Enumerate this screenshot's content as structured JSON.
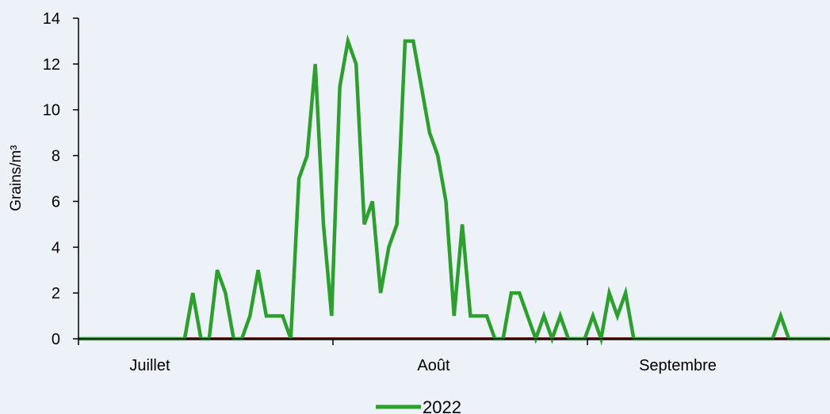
{
  "chart_data": {
    "type": "line",
    "title": "",
    "xlabel": "",
    "ylabel": "Grains/m³",
    "ylim": [
      0,
      14
    ],
    "yticks": [
      0,
      2,
      4,
      6,
      8,
      10,
      12,
      14
    ],
    "grid": false,
    "legend_position": "bottom",
    "month_labels": [
      "Juillet",
      "Août",
      "Septembre"
    ],
    "series": [
      {
        "name": "2022",
        "color": "#2ca02c",
        "values": [
          0,
          0,
          0,
          0,
          0,
          0,
          0,
          0,
          0,
          0,
          0,
          0,
          0,
          0,
          2,
          0,
          0,
          3,
          2,
          0,
          0,
          1,
          3,
          1,
          1,
          1,
          0,
          7,
          8,
          12,
          5,
          1,
          11,
          13,
          12,
          5,
          6,
          2,
          4,
          5,
          13,
          13,
          11,
          9,
          8,
          6,
          1,
          5,
          1,
          1,
          1,
          0,
          0,
          2,
          2,
          1,
          0,
          1,
          0,
          1,
          0,
          0,
          0,
          1,
          0,
          2,
          1,
          2,
          0,
          0,
          0,
          0,
          0,
          0,
          0,
          0,
          0,
          0,
          0,
          0,
          0,
          0,
          0,
          0,
          0,
          0,
          1,
          0,
          0,
          0,
          0,
          0,
          0
        ]
      },
      {
        "name": "",
        "color": "#7b2c2c",
        "values": [
          0,
          0,
          0,
          0,
          0,
          0,
          0,
          0,
          0,
          0,
          0,
          0,
          0,
          0,
          0,
          0,
          0,
          0,
          0,
          0,
          0,
          0,
          0,
          0,
          0,
          0,
          0,
          0,
          0,
          0,
          0,
          0,
          0,
          0,
          0,
          0,
          0,
          0,
          0,
          0,
          0,
          0,
          0,
          0,
          0,
          0,
          0,
          0,
          0,
          0,
          0,
          0,
          0,
          0,
          0,
          0,
          0,
          0,
          0,
          0,
          0,
          0,
          0,
          0,
          0,
          0,
          0,
          0,
          0,
          0,
          0,
          0,
          0,
          0,
          0,
          0,
          0,
          0,
          0,
          0,
          0,
          0,
          0,
          0,
          0,
          0,
          0,
          0,
          0,
          0,
          0,
          0,
          0
        ]
      }
    ]
  }
}
